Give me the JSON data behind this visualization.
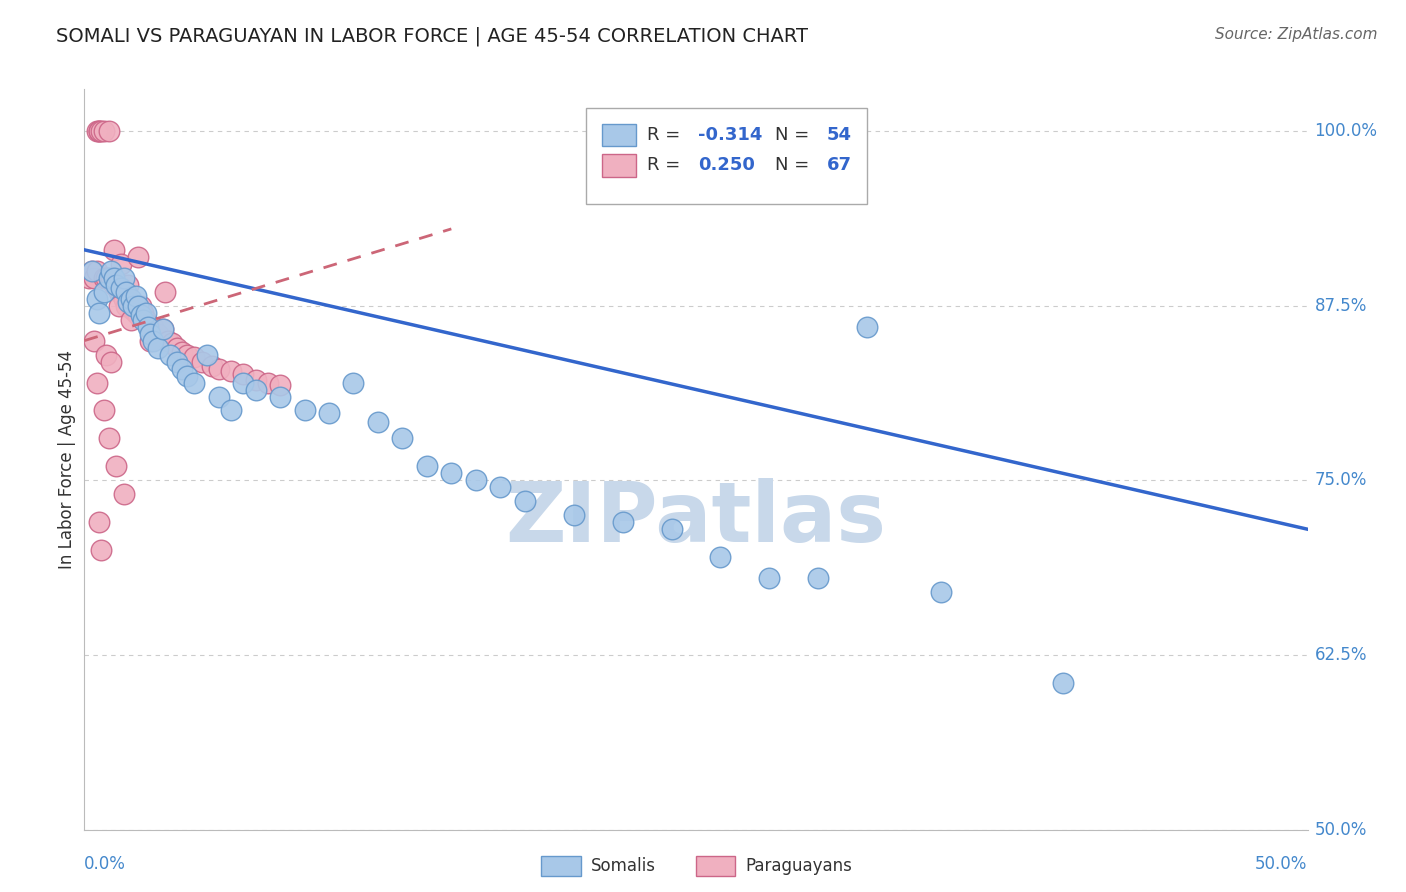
{
  "title": "SOMALI VS PARAGUAYAN IN LABOR FORCE | AGE 45-54 CORRELATION CHART",
  "source": "Source: ZipAtlas.com",
  "ylabel": "In Labor Force | Age 45-54",
  "ytick_labels": [
    "50.0%",
    "62.5%",
    "75.0%",
    "87.5%",
    "100.0%"
  ],
  "ytick_values": [
    50.0,
    62.5,
    75.0,
    87.5,
    100.0
  ],
  "xtick_labels": [
    "0.0%",
    "50.0%"
  ],
  "xlim": [
    0.0,
    50.0
  ],
  "ylim": [
    50.0,
    103.0
  ],
  "somali_color": "#a8c8e8",
  "somali_edge_color": "#6699cc",
  "paraguayan_color": "#f0b0c0",
  "paraguayan_edge_color": "#cc6688",
  "somali_line_color": "#3366cc",
  "paraguayan_line_color": "#cc6677",
  "watermark_color": "#c8d8ea",
  "grid_color": "#cccccc",
  "axis_color": "#bbbbbb",
  "ytick_color": "#4488cc",
  "title_color": "#222222",
  "source_color": "#666666",
  "legend_r_color": "#3366cc",
  "somali_x": [
    0.3,
    0.5,
    0.6,
    0.8,
    1.0,
    1.1,
    1.2,
    1.3,
    1.5,
    1.6,
    1.7,
    1.8,
    1.9,
    2.0,
    2.1,
    2.2,
    2.3,
    2.4,
    2.5,
    2.6,
    2.7,
    2.8,
    3.0,
    3.2,
    3.5,
    3.8,
    4.0,
    4.2,
    4.5,
    5.0,
    5.5,
    6.0,
    6.5,
    7.0,
    8.0,
    9.0,
    10.0,
    11.0,
    12.0,
    13.0,
    14.0,
    15.0,
    16.0,
    17.0,
    18.0,
    20.0,
    22.0,
    24.0,
    26.0,
    28.0,
    30.0,
    35.0,
    40.0,
    32.0
  ],
  "somali_y": [
    90.0,
    88.0,
    87.0,
    88.5,
    89.5,
    90.0,
    89.5,
    89.0,
    88.8,
    89.5,
    88.5,
    87.8,
    88.0,
    87.5,
    88.2,
    87.5,
    86.8,
    86.5,
    87.0,
    86.0,
    85.5,
    85.0,
    84.5,
    85.8,
    84.0,
    83.5,
    83.0,
    82.5,
    82.0,
    84.0,
    81.0,
    80.0,
    82.0,
    81.5,
    81.0,
    80.0,
    79.8,
    82.0,
    79.2,
    78.0,
    76.0,
    75.5,
    75.0,
    74.5,
    73.5,
    72.5,
    72.0,
    71.5,
    69.5,
    68.0,
    68.0,
    67.0,
    60.5,
    86.0
  ],
  "paraguayan_x": [
    0.2,
    0.3,
    0.4,
    0.5,
    0.5,
    0.6,
    0.6,
    0.7,
    0.8,
    0.8,
    0.9,
    1.0,
    1.0,
    1.1,
    1.2,
    1.2,
    1.3,
    1.4,
    1.5,
    1.5,
    1.6,
    1.7,
    1.8,
    1.9,
    2.0,
    2.1,
    2.2,
    2.3,
    2.4,
    2.5,
    2.6,
    2.8,
    3.0,
    3.2,
    3.4,
    3.6,
    3.8,
    4.0,
    4.2,
    4.5,
    4.8,
    5.2,
    5.5,
    6.0,
    6.5,
    7.0,
    7.5,
    8.0,
    1.2,
    1.5,
    1.8,
    2.0,
    0.5,
    0.8,
    1.0,
    0.6,
    0.7,
    1.3,
    1.6,
    0.4,
    0.9,
    1.1,
    2.2,
    1.4,
    1.9,
    2.7,
    3.3
  ],
  "paraguayan_y": [
    89.5,
    90.0,
    89.5,
    90.0,
    100.0,
    100.0,
    100.0,
    100.0,
    89.5,
    100.0,
    89.5,
    100.0,
    89.5,
    89.5,
    89.5,
    89.0,
    89.0,
    88.5,
    88.8,
    88.5,
    88.0,
    87.5,
    88.0,
    87.5,
    87.2,
    87.0,
    86.8,
    87.5,
    87.0,
    86.5,
    86.2,
    86.0,
    85.5,
    85.8,
    85.0,
    84.8,
    84.5,
    84.2,
    84.0,
    83.8,
    83.5,
    83.2,
    83.0,
    82.8,
    82.6,
    82.2,
    82.0,
    81.8,
    91.5,
    90.5,
    89.0,
    87.5,
    82.0,
    80.0,
    78.0,
    72.0,
    70.0,
    76.0,
    74.0,
    85.0,
    84.0,
    83.5,
    91.0,
    87.5,
    86.5,
    85.0,
    88.5
  ],
  "somali_trendline_x": [
    0.0,
    50.0
  ],
  "somali_trendline_y": [
    91.5,
    71.5
  ],
  "paraguayan_trendline_x": [
    0.0,
    15.0
  ],
  "paraguayan_trendline_y": [
    85.0,
    93.0
  ]
}
